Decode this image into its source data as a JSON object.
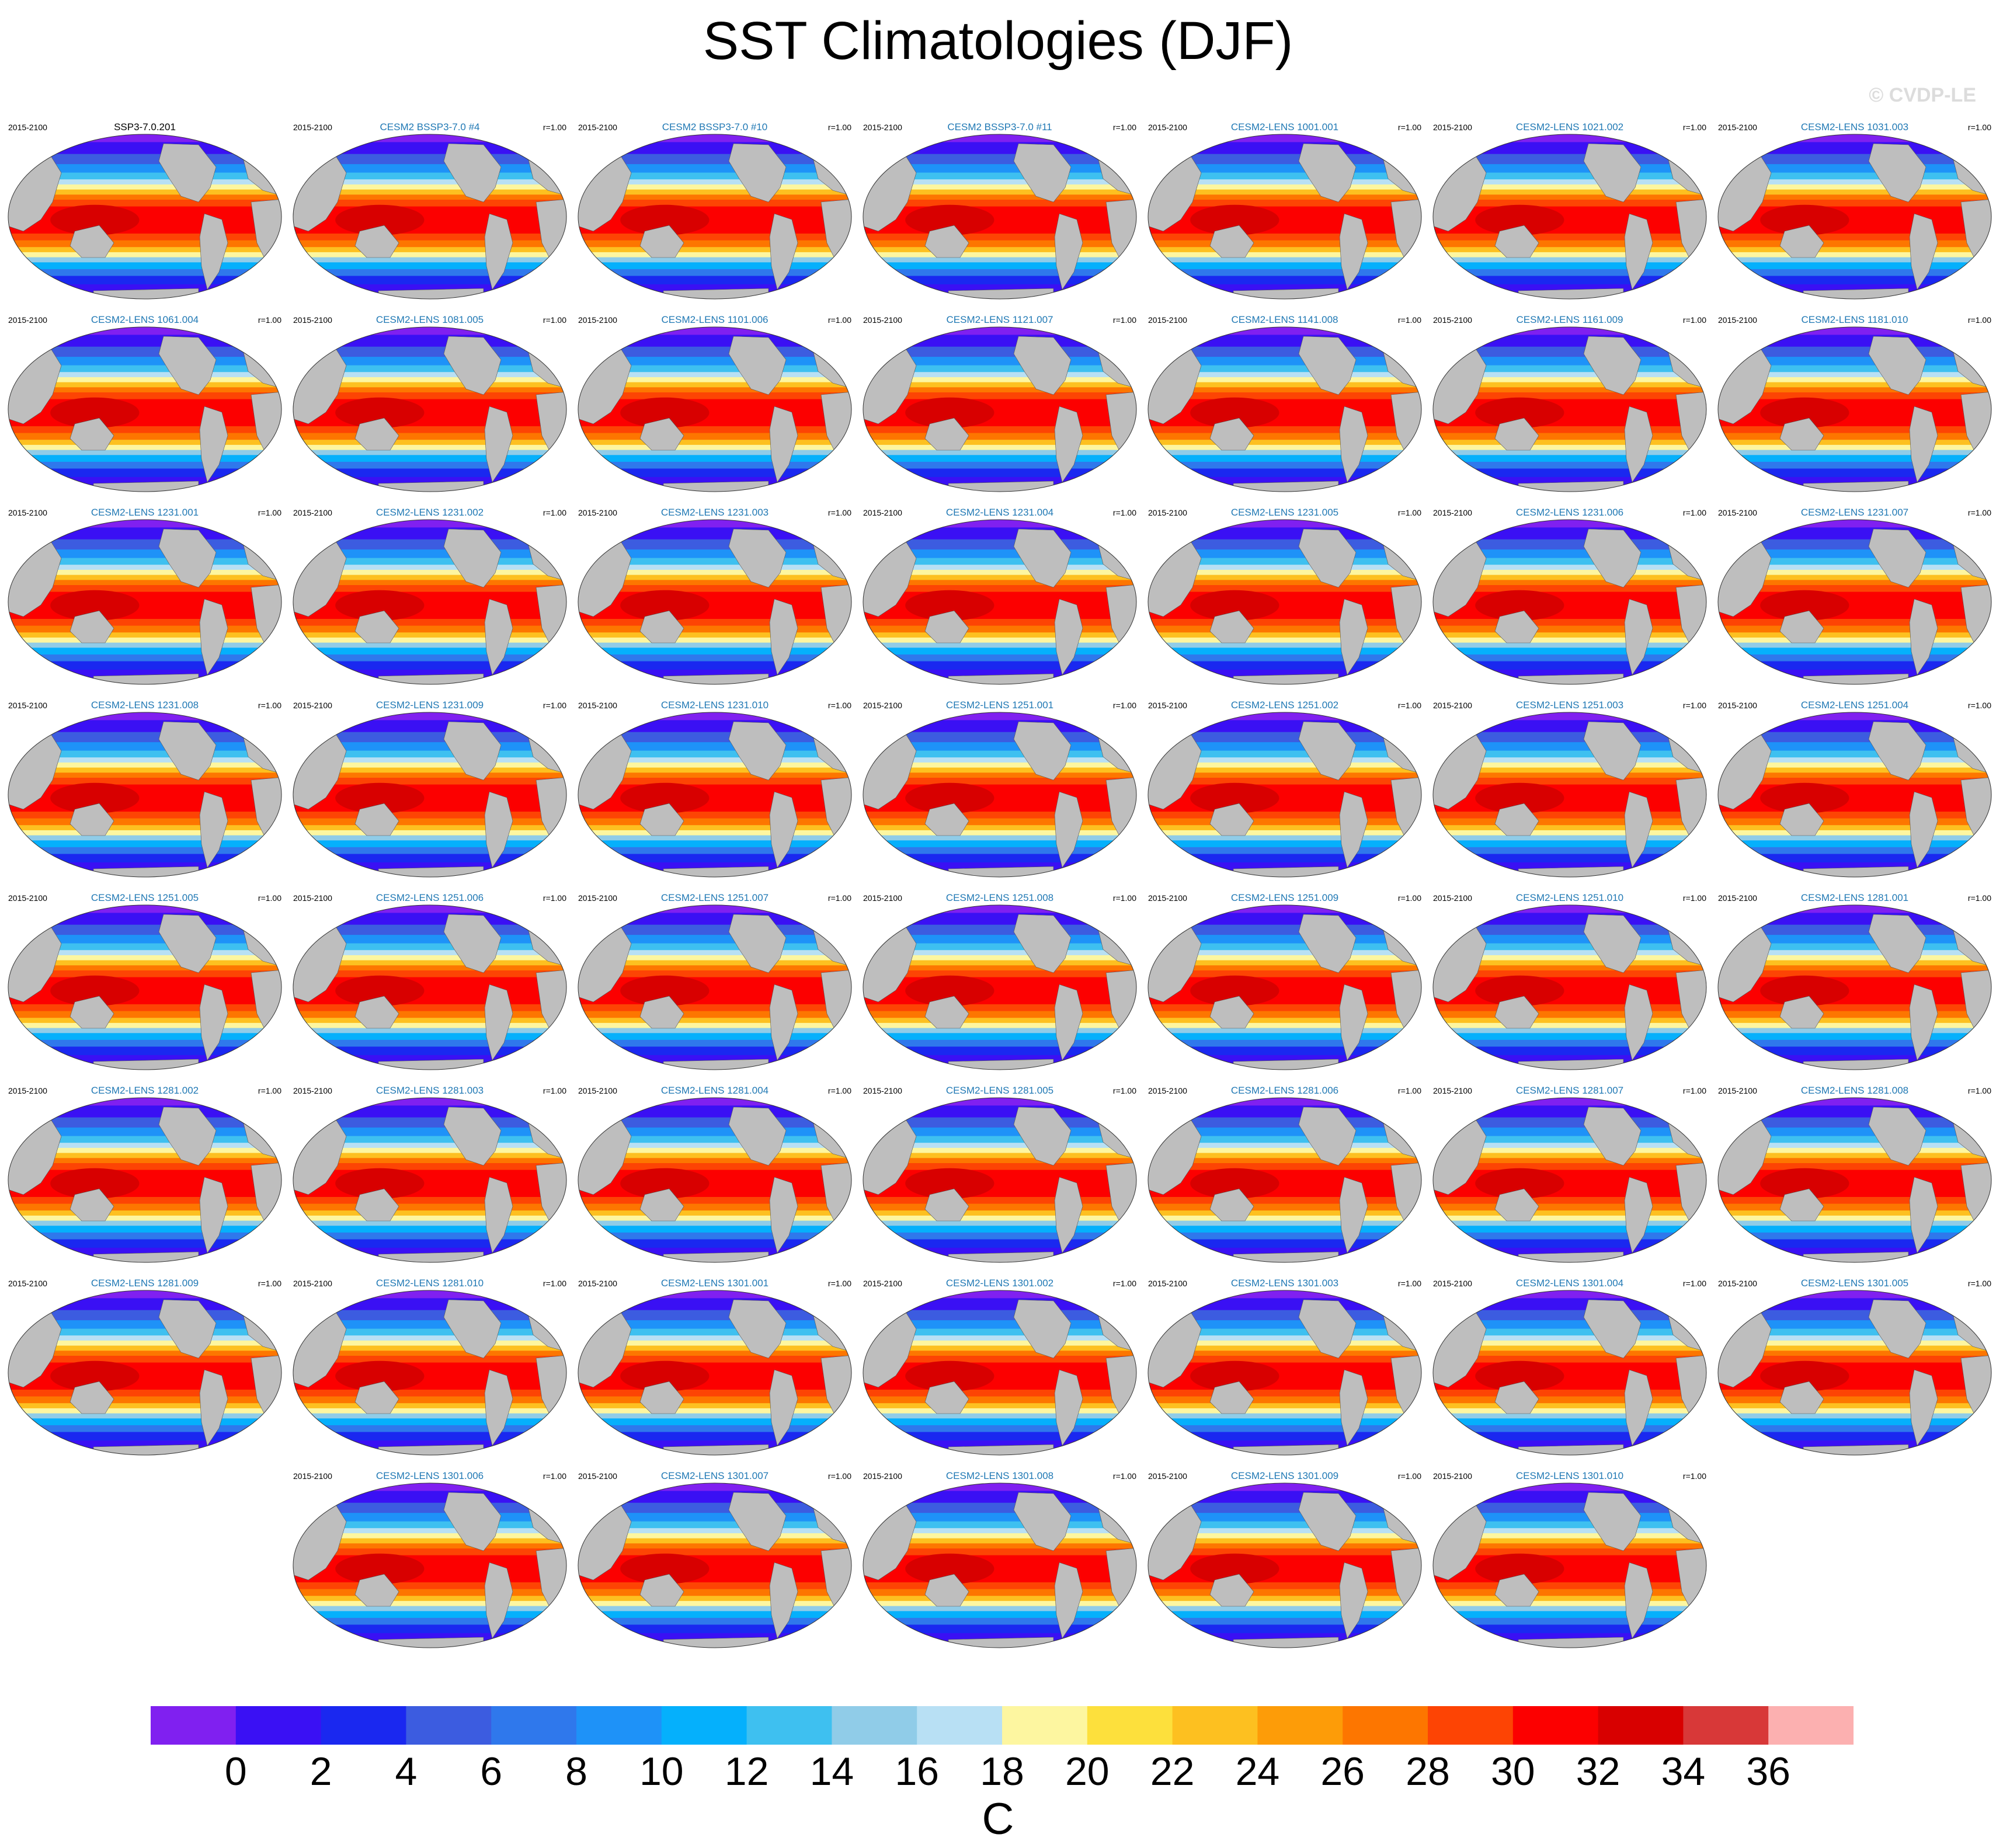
{
  "title": "SST Climatologies (DJF)",
  "watermark": "© CVDP-LE",
  "period": "2015-2100",
  "panels": [
    {
      "name": "SSP3-7.0.201",
      "r": "",
      "obs": true
    },
    {
      "name": "CESM2 BSSP3-7.0 #4",
      "r": "r=1.00"
    },
    {
      "name": "CESM2 BSSP3-7.0 #10",
      "r": "r=1.00"
    },
    {
      "name": "CESM2 BSSP3-7.0 #11",
      "r": "r=1.00"
    },
    {
      "name": "CESM2-LENS 1001.001",
      "r": "r=1.00"
    },
    {
      "name": "CESM2-LENS 1021.002",
      "r": "r=1.00"
    },
    {
      "name": "CESM2-LENS 1031.003",
      "r": "r=1.00"
    },
    {
      "name": "CESM2-LENS 1061.004",
      "r": "r=1.00"
    },
    {
      "name": "CESM2-LENS 1081.005",
      "r": "r=1.00"
    },
    {
      "name": "CESM2-LENS 1101.006",
      "r": "r=1.00"
    },
    {
      "name": "CESM2-LENS 1121.007",
      "r": "r=1.00"
    },
    {
      "name": "CESM2-LENS 1141.008",
      "r": "r=1.00"
    },
    {
      "name": "CESM2-LENS 1161.009",
      "r": "r=1.00"
    },
    {
      "name": "CESM2-LENS 1181.010",
      "r": "r=1.00"
    },
    {
      "name": "CESM2-LENS 1231.001",
      "r": "r=1.00"
    },
    {
      "name": "CESM2-LENS 1231.002",
      "r": "r=1.00"
    },
    {
      "name": "CESM2-LENS 1231.003",
      "r": "r=1.00"
    },
    {
      "name": "CESM2-LENS 1231.004",
      "r": "r=1.00"
    },
    {
      "name": "CESM2-LENS 1231.005",
      "r": "r=1.00"
    },
    {
      "name": "CESM2-LENS 1231.006",
      "r": "r=1.00"
    },
    {
      "name": "CESM2-LENS 1231.007",
      "r": "r=1.00"
    },
    {
      "name": "CESM2-LENS 1231.008",
      "r": "r=1.00"
    },
    {
      "name": "CESM2-LENS 1231.009",
      "r": "r=1.00"
    },
    {
      "name": "CESM2-LENS 1231.010",
      "r": "r=1.00"
    },
    {
      "name": "CESM2-LENS 1251.001",
      "r": "r=1.00"
    },
    {
      "name": "CESM2-LENS 1251.002",
      "r": "r=1.00"
    },
    {
      "name": "CESM2-LENS 1251.003",
      "r": "r=1.00"
    },
    {
      "name": "CESM2-LENS 1251.004",
      "r": "r=1.00"
    },
    {
      "name": "CESM2-LENS 1251.005",
      "r": "r=1.00"
    },
    {
      "name": "CESM2-LENS 1251.006",
      "r": "r=1.00"
    },
    {
      "name": "CESM2-LENS 1251.007",
      "r": "r=1.00"
    },
    {
      "name": "CESM2-LENS 1251.008",
      "r": "r=1.00"
    },
    {
      "name": "CESM2-LENS 1251.009",
      "r": "r=1.00"
    },
    {
      "name": "CESM2-LENS 1251.010",
      "r": "r=1.00"
    },
    {
      "name": "CESM2-LENS 1281.001",
      "r": "r=1.00"
    },
    {
      "name": "CESM2-LENS 1281.002",
      "r": "r=1.00"
    },
    {
      "name": "CESM2-LENS 1281.003",
      "r": "r=1.00"
    },
    {
      "name": "CESM2-LENS 1281.004",
      "r": "r=1.00"
    },
    {
      "name": "CESM2-LENS 1281.005",
      "r": "r=1.00"
    },
    {
      "name": "CESM2-LENS 1281.006",
      "r": "r=1.00"
    },
    {
      "name": "CESM2-LENS 1281.007",
      "r": "r=1.00"
    },
    {
      "name": "CESM2-LENS 1281.008",
      "r": "r=1.00"
    },
    {
      "name": "CESM2-LENS 1281.009",
      "r": "r=1.00"
    },
    {
      "name": "CESM2-LENS 1281.010",
      "r": "r=1.00"
    },
    {
      "name": "CESM2-LENS 1301.001",
      "r": "r=1.00"
    },
    {
      "name": "CESM2-LENS 1301.002",
      "r": "r=1.00"
    },
    {
      "name": "CESM2-LENS 1301.003",
      "r": "r=1.00"
    },
    {
      "name": "CESM2-LENS 1301.004",
      "r": "r=1.00"
    },
    {
      "name": "CESM2-LENS 1301.005",
      "r": "r=1.00"
    },
    {
      "name": "CESM2-LENS 1301.006",
      "r": "r=1.00"
    },
    {
      "name": "CESM2-LENS 1301.007",
      "r": "r=1.00"
    },
    {
      "name": "CESM2-LENS 1301.008",
      "r": "r=1.00"
    },
    {
      "name": "CESM2-LENS 1301.009",
      "r": "r=1.00"
    },
    {
      "name": "CESM2-LENS 1301.010",
      "r": "r=1.00"
    }
  ],
  "colorbar": {
    "units": "C",
    "levels": [
      0,
      2,
      4,
      6,
      8,
      10,
      12,
      14,
      16,
      18,
      20,
      22,
      24,
      26,
      28,
      30,
      32,
      34,
      36
    ],
    "colors": [
      "#8020f0",
      "#3a10f4",
      "#1a28f0",
      "#3c5ce0",
      "#2f78ec",
      "#1e92f8",
      "#05b0fc",
      "#3ec0f0",
      "#90cce8",
      "#b8e0f4",
      "#fdf6a0",
      "#fde03c",
      "#fdc020",
      "#fd9c08",
      "#fd7600",
      "#fd4404",
      "#fc0000",
      "#d80000",
      "#d83838",
      "#fcb0b0"
    ],
    "land_color": "#bebebe"
  }
}
